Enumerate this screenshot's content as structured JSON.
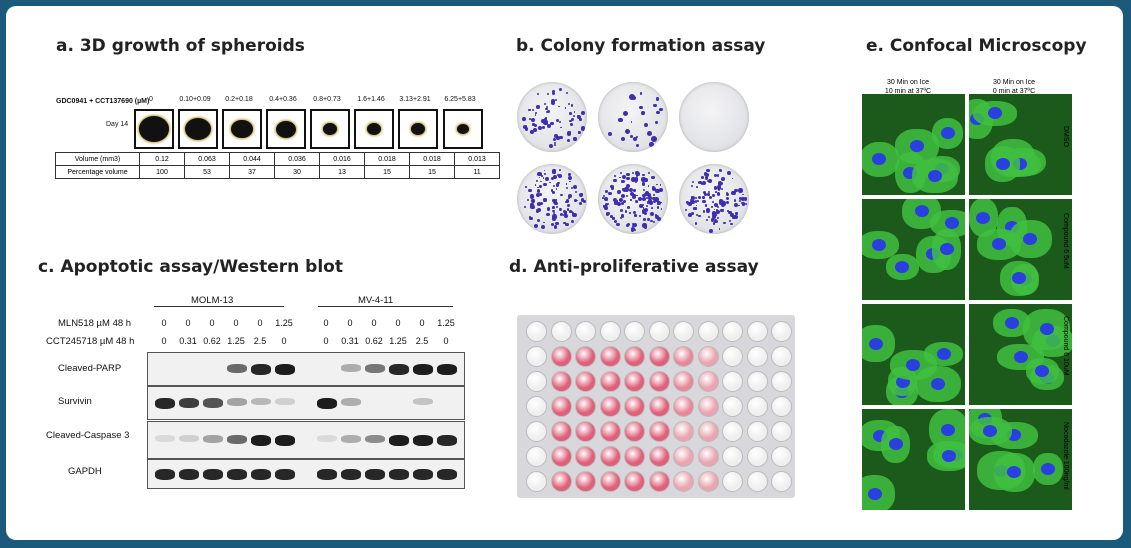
{
  "panels": {
    "a": {
      "title": "a. 3D growth of spheroids",
      "drug_label": "GDC0941 + CCT137690 (µM)",
      "concentrations": [
        "0",
        "0.10+0.09",
        "0.2+0.18",
        "0.4+0.36",
        "0.8+0.73",
        "1.6+1.46",
        "3.13+2.91",
        "6.25+5.83"
      ],
      "day_label": "Day 14",
      "volume_label": "Volume (mm3)",
      "volumes": [
        "0.12",
        "0.063",
        "0.044",
        "0.036",
        "0.016",
        "0.018",
        "0.018",
        "0.013"
      ],
      "percent_label": "Percentage volume",
      "percents": [
        "100",
        "53",
        "37",
        "30",
        "13",
        "15",
        "15",
        "11"
      ]
    },
    "b": {
      "title": "b. Colony formation assay"
    },
    "c": {
      "title": "c. Apoptotic assay/Western blot",
      "cell_line_1": "MOLM-13",
      "cell_line_2": "MV-4-11",
      "row1_label": "MLN518 µM 48 h",
      "row1_values": [
        "0",
        "0",
        "0",
        "0",
        "0",
        "1.25",
        "0",
        "0",
        "0",
        "0",
        "0",
        "1.25"
      ],
      "row2_label": "CCT245718 µM 48 h",
      "row2_values": [
        "0",
        "0.31",
        "0.62",
        "1.25",
        "2.5",
        "0",
        "0",
        "0.31",
        "0.62",
        "1.25",
        "2.5",
        "0"
      ],
      "blots": [
        "Cleaved-PARP",
        "Survivin",
        "Cleaved-Caspase 3",
        "GAPDH"
      ]
    },
    "d": {
      "title": "d. Anti-proliferative assay"
    },
    "e": {
      "title": "e. Confocal Microscopy",
      "col1": "30 Min on Ice 10 min at 37ºC",
      "col1_a": "30 Min on Ice",
      "col1_b": "10 min at 37ºC",
      "col2_a": "30 Min on Ice",
      "col2_b": "0 min at 37ºC",
      "rows": [
        "DMSO",
        "Compound 6 5uM",
        "Compound 6 10uM",
        "Nocodazole 100ng/ml"
      ]
    }
  }
}
